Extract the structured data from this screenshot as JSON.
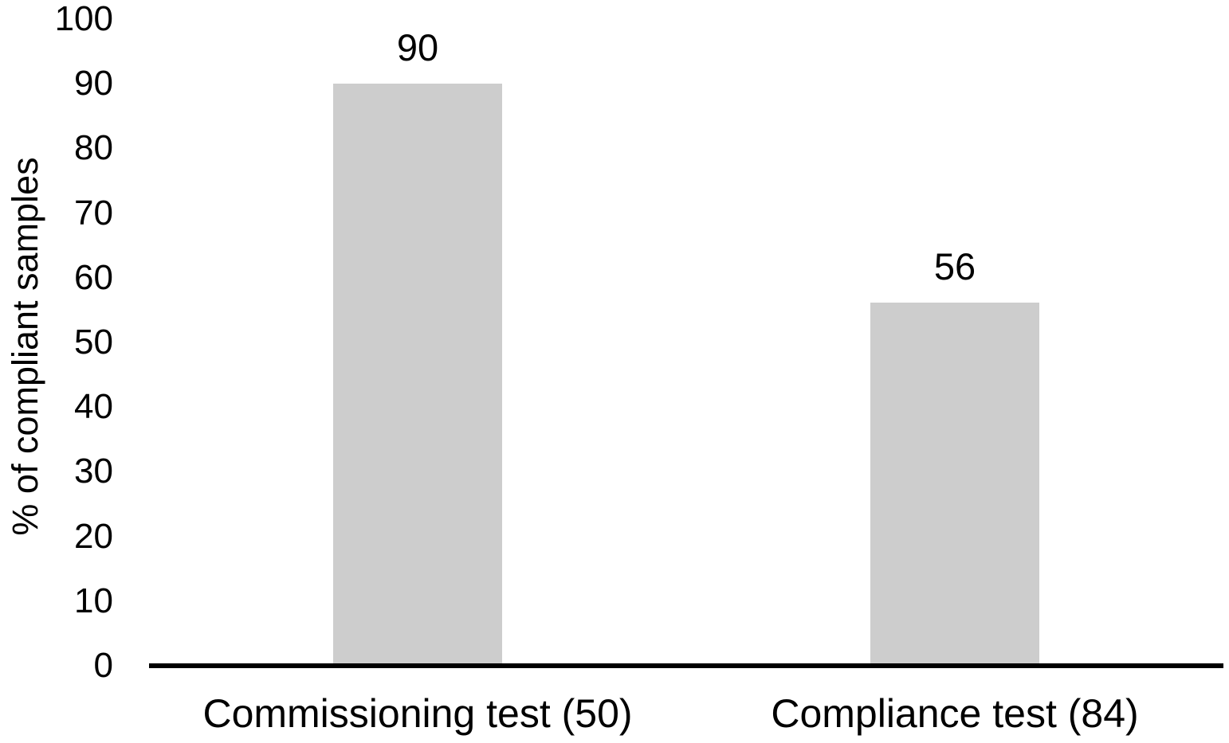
{
  "chart_data": {
    "type": "bar",
    "categories": [
      "Commissioning test (50)",
      "Compliance test (84)"
    ],
    "values": [
      90,
      56
    ],
    "data_labels": [
      "90",
      "56"
    ],
    "title": "",
    "xlabel": "",
    "ylabel": "% of compliant samples",
    "ylim": [
      0,
      100
    ],
    "yticks": [
      100,
      90,
      80,
      70,
      60,
      50,
      40,
      30,
      20,
      10,
      0
    ],
    "ytick_step": 10,
    "grid": false,
    "legend": false,
    "bar_color": "#CDCDCD",
    "axis_color": "#000000",
    "text_color": "#000000",
    "background_color": "#FFFFFF"
  }
}
